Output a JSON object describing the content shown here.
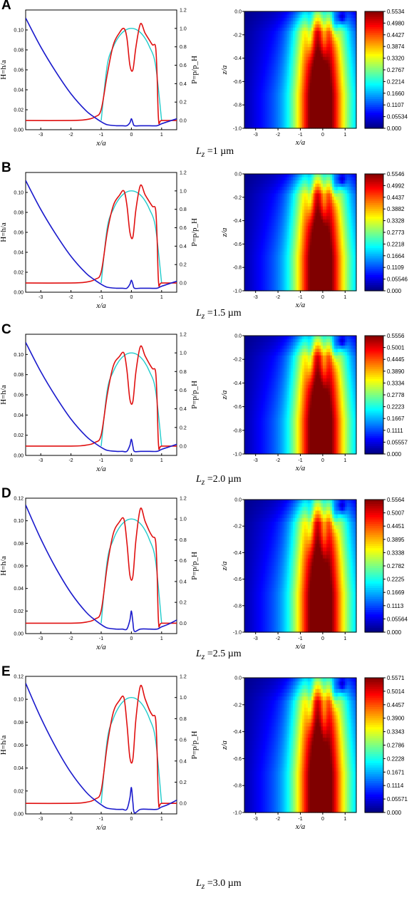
{
  "panels": [
    {
      "letter": "A",
      "caption_prefix": "L",
      "caption_sub": "z",
      "caption_value": " =1 µm"
    },
    {
      "letter": "B",
      "caption_prefix": "L",
      "caption_sub": "z",
      "caption_value": " =1.5 µm"
    },
    {
      "letter": "C",
      "caption_prefix": "L",
      "caption_sub": "z",
      "caption_value": " =2.0 µm"
    },
    {
      "letter": "D",
      "caption_prefix": "L",
      "caption_sub": "z",
      "caption_value": " =2.5 µm"
    },
    {
      "letter": "E",
      "caption_prefix": "L",
      "caption_sub": "z",
      "caption_value": " =3.0 µm"
    }
  ],
  "colors": {
    "film_thickness": "#1a1acc",
    "pressure": "#e01010",
    "hertz": "#22cccc"
  },
  "chart_data": [
    {
      "type": "line",
      "panel": "A",
      "xlabel": "x/a",
      "ylabel_left": "H=h/a",
      "ylabel_right": "P=p/p_H",
      "xlim": [
        -3.5,
        1.5
      ],
      "ylim_left": [
        0.0,
        0.12
      ],
      "ylim_right": [
        -0.1,
        1.2
      ],
      "x_ticks": [
        "-3",
        "-2",
        "-1",
        "0",
        "1"
      ],
      "y_left_ticks": [
        "0.00",
        "0.02",
        "0.04",
        "0.06",
        "0.08",
        "0.10"
      ],
      "y_right_ticks": [
        "0.0",
        "0.2",
        "0.4",
        "0.6",
        "0.8",
        "1.0",
        "1.2"
      ],
      "series": [
        {
          "x": [
            -3.5,
            -3.0,
            -2.5,
            -2.0,
            -1.5,
            -1.2,
            -1.0,
            -0.8,
            -0.5,
            -0.3,
            -0.15,
            -0.05,
            0.0,
            0.05,
            0.1,
            0.3,
            0.6,
            0.85,
            1.0,
            1.2,
            1.5
          ],
          "values": [
            0.112,
            0.083,
            0.058,
            0.036,
            0.019,
            0.012,
            0.008,
            0.005,
            0.004,
            0.004,
            0.004,
            0.007,
            0.011,
            0.007,
            0.004,
            0.004,
            0.004,
            0.004,
            0.006,
            0.008,
            0.011
          ]
        },
        {
          "x": [
            -3.5,
            -2.0,
            -1.5,
            -1.2,
            -1.0,
            -0.8,
            -0.6,
            -0.4,
            -0.25,
            -0.15,
            -0.05,
            0.05,
            0.15,
            0.3,
            0.45,
            0.6,
            0.7,
            0.8,
            0.85,
            0.9,
            1.0,
            1.5
          ],
          "values": [
            0.0,
            0.0,
            0.01,
            0.04,
            0.12,
            0.5,
            0.82,
            0.95,
            1.0,
            0.9,
            0.6,
            0.55,
            0.8,
            1.05,
            0.95,
            0.87,
            0.82,
            0.8,
            0.5,
            0.0,
            0.0,
            0.0
          ]
        },
        {
          "x": [
            -1.0,
            -0.8,
            -0.6,
            -0.4,
            -0.2,
            0.0,
            0.2,
            0.4,
            0.6,
            0.8,
            1.0
          ],
          "values": [
            0.0,
            0.6,
            0.8,
            0.917,
            0.98,
            1.0,
            0.98,
            0.917,
            0.8,
            0.6,
            0.0
          ]
        }
      ]
    },
    {
      "type": "heatmap",
      "panel": "A",
      "xlabel": "x/a",
      "ylabel": "z/a",
      "xlim": [
        -3.5,
        1.5
      ],
      "ylim": [
        -1.0,
        0.0
      ],
      "x_ticks": [
        "-3",
        "-2",
        "-1",
        "0",
        "1"
      ],
      "y_ticks": [
        "0.0",
        "-0.2",
        "-0.4",
        "-0.6",
        "-0.8",
        "-1.0"
      ],
      "colorbar_ticks": [
        "0.5534",
        "0.4980",
        "0.4427",
        "0.3874",
        "0.3320",
        "0.2767",
        "0.2214",
        "0.1660",
        "0.1107",
        "0.05534",
        "0.000"
      ],
      "vmax": 0.5534
    },
    {
      "type": "line",
      "panel": "B",
      "xlabel": "x/a",
      "ylabel_left": "H=h/a",
      "ylabel_right": "P=p/p_H",
      "xlim": [
        -3.5,
        1.5
      ],
      "ylim_left": [
        0.0,
        0.12
      ],
      "ylim_right": [
        -0.1,
        1.2
      ],
      "x_ticks": [
        "-3",
        "-2",
        "-1",
        "0",
        "1"
      ],
      "y_left_ticks": [
        "0.00",
        "0.02",
        "0.04",
        "0.06",
        "0.08",
        "0.10"
      ],
      "y_right_ticks": [
        "0.0",
        "0.2",
        "0.4",
        "0.6",
        "0.8",
        "1.0",
        "1.2"
      ],
      "series": [
        {
          "x": [
            -3.5,
            -3.0,
            -2.5,
            -2.0,
            -1.5,
            -1.2,
            -1.0,
            -0.8,
            -0.5,
            -0.3,
            -0.15,
            -0.05,
            0.0,
            0.05,
            0.1,
            0.3,
            0.6,
            0.85,
            1.0,
            1.2,
            1.5
          ],
          "values": [
            0.112,
            0.083,
            0.058,
            0.036,
            0.019,
            0.012,
            0.008,
            0.005,
            0.004,
            0.004,
            0.004,
            0.008,
            0.012,
            0.008,
            0.004,
            0.004,
            0.004,
            0.004,
            0.006,
            0.008,
            0.011
          ]
        },
        {
          "x": [
            -3.5,
            -2.0,
            -1.5,
            -1.2,
            -1.0,
            -0.8,
            -0.6,
            -0.4,
            -0.25,
            -0.15,
            -0.05,
            0.05,
            0.15,
            0.3,
            0.45,
            0.6,
            0.7,
            0.8,
            0.85,
            0.9,
            1.0,
            1.5
          ],
          "values": [
            0.0,
            0.0,
            0.01,
            0.04,
            0.12,
            0.55,
            0.84,
            0.95,
            1.0,
            0.85,
            0.55,
            0.5,
            0.8,
            1.06,
            0.96,
            0.88,
            0.83,
            0.8,
            0.5,
            0.0,
            0.0,
            0.0
          ]
        },
        {
          "x": [
            -1.0,
            -0.8,
            -0.6,
            -0.4,
            -0.2,
            0.0,
            0.2,
            0.4,
            0.6,
            0.8,
            1.0
          ],
          "values": [
            0.0,
            0.6,
            0.8,
            0.917,
            0.98,
            1.0,
            0.98,
            0.917,
            0.8,
            0.6,
            0.0
          ]
        }
      ]
    },
    {
      "type": "heatmap",
      "panel": "B",
      "xlabel": "x/a",
      "ylabel": "z/a",
      "xlim": [
        -3.5,
        1.5
      ],
      "ylim": [
        -1.0,
        0.0
      ],
      "x_ticks": [
        "-3",
        "-2",
        "-1",
        "0",
        "1"
      ],
      "y_ticks": [
        "0.0",
        "-0.2",
        "-0.4",
        "-0.6",
        "-0.8",
        "-1.0"
      ],
      "colorbar_ticks": [
        "0.5546",
        "0.4992",
        "0.4437",
        "0.3882",
        "0.3328",
        "0.2773",
        "0.2218",
        "0.1664",
        "0.1109",
        "0.05546",
        "0.000"
      ],
      "vmax": 0.5546
    },
    {
      "type": "line",
      "panel": "C",
      "xlabel": "x/a",
      "ylabel_left": "H=h/a",
      "ylabel_right": "P=p/p_H",
      "xlim": [
        -3.5,
        1.5
      ],
      "ylim_left": [
        0.0,
        0.12
      ],
      "ylim_right": [
        -0.1,
        1.2
      ],
      "x_ticks": [
        "-3",
        "-2",
        "-1",
        "0",
        "1"
      ],
      "y_left_ticks": [
        "0.00",
        "0.02",
        "0.04",
        "0.06",
        "0.08",
        "0.10"
      ],
      "y_right_ticks": [
        "0.0",
        "0.2",
        "0.4",
        "0.6",
        "0.8",
        "1.0",
        "1.2"
      ],
      "series": [
        {
          "x": [
            -3.5,
            -3.0,
            -2.5,
            -2.0,
            -1.5,
            -1.2,
            -1.0,
            -0.8,
            -0.5,
            -0.3,
            -0.15,
            -0.05,
            0.0,
            0.05,
            0.1,
            0.3,
            0.6,
            0.85,
            1.0,
            1.2,
            1.5
          ],
          "values": [
            0.112,
            0.083,
            0.058,
            0.036,
            0.019,
            0.012,
            0.008,
            0.005,
            0.004,
            0.004,
            0.004,
            0.01,
            0.016,
            0.009,
            0.004,
            0.004,
            0.004,
            0.004,
            0.006,
            0.008,
            0.011
          ]
        },
        {
          "x": [
            -3.5,
            -2.0,
            -1.5,
            -1.2,
            -1.0,
            -0.8,
            -0.6,
            -0.4,
            -0.25,
            -0.15,
            -0.05,
            0.05,
            0.15,
            0.3,
            0.45,
            0.6,
            0.7,
            0.8,
            0.85,
            0.9,
            1.0,
            1.5
          ],
          "values": [
            0.0,
            0.0,
            0.01,
            0.04,
            0.12,
            0.55,
            0.86,
            0.96,
            1.0,
            0.82,
            0.5,
            0.48,
            0.8,
            1.07,
            0.97,
            0.88,
            0.83,
            0.8,
            0.5,
            0.0,
            0.0,
            0.0
          ]
        },
        {
          "x": [
            -1.0,
            -0.8,
            -0.6,
            -0.4,
            -0.2,
            0.0,
            0.2,
            0.4,
            0.6,
            0.8,
            1.0
          ],
          "values": [
            0.0,
            0.6,
            0.8,
            0.917,
            0.98,
            1.0,
            0.98,
            0.917,
            0.8,
            0.6,
            0.0
          ]
        }
      ]
    },
    {
      "type": "heatmap",
      "panel": "C",
      "xlabel": "x/a",
      "ylabel": "z/a",
      "xlim": [
        -3.5,
        1.5
      ],
      "ylim": [
        -1.0,
        0.0
      ],
      "x_ticks": [
        "-3",
        "-2",
        "-1",
        "0",
        "1"
      ],
      "y_ticks": [
        "0.0",
        "-0.2",
        "-0.4",
        "-0.6",
        "-0.8",
        "-1.0"
      ],
      "colorbar_ticks": [
        "0.5556",
        "0.5001",
        "0.4445",
        "0.3890",
        "0.3334",
        "0.2778",
        "0.2223",
        "0.1667",
        "0.1111",
        "0.05557",
        "0.000"
      ],
      "vmax": 0.5556
    },
    {
      "type": "line",
      "panel": "D",
      "xlabel": "x/a",
      "ylabel_left": "H=h/a",
      "ylabel_right": "P=p/p_H",
      "xlim": [
        -3.5,
        1.5
      ],
      "ylim_left": [
        0.0,
        0.12
      ],
      "ylim_right": [
        -0.1,
        1.2
      ],
      "x_ticks": [
        "-3",
        "-2",
        "-1",
        "0",
        "1"
      ],
      "y_left_ticks": [
        "0.00",
        "0.02",
        "0.04",
        "0.06",
        "0.08",
        "0.10",
        "0.12"
      ],
      "y_right_ticks": [
        "0.0",
        "0.2",
        "0.4",
        "0.6",
        "0.8",
        "1.0",
        "1.2"
      ],
      "series": [
        {
          "x": [
            -3.5,
            -3.0,
            -2.5,
            -2.0,
            -1.5,
            -1.2,
            -1.0,
            -0.8,
            -0.5,
            -0.3,
            -0.15,
            -0.05,
            0.0,
            0.05,
            0.1,
            0.3,
            0.6,
            0.85,
            1.0,
            1.2,
            1.5
          ],
          "values": [
            0.114,
            0.084,
            0.058,
            0.036,
            0.019,
            0.012,
            0.008,
            0.005,
            0.004,
            0.004,
            0.004,
            0.012,
            0.02,
            0.01,
            0.002,
            0.004,
            0.004,
            0.004,
            0.006,
            0.008,
            0.012
          ]
        },
        {
          "x": [
            -3.5,
            -2.0,
            -1.5,
            -1.2,
            -1.0,
            -0.8,
            -0.6,
            -0.4,
            -0.25,
            -0.15,
            -0.05,
            0.05,
            0.15,
            0.3,
            0.45,
            0.6,
            0.7,
            0.8,
            0.85,
            0.9,
            1.0,
            1.5
          ],
          "values": [
            0.0,
            0.0,
            0.01,
            0.04,
            0.12,
            0.55,
            0.86,
            0.97,
            1.0,
            0.78,
            0.46,
            0.45,
            0.8,
            1.1,
            0.98,
            0.88,
            0.83,
            0.79,
            0.5,
            0.0,
            0.0,
            0.0
          ]
        },
        {
          "x": [
            -1.0,
            -0.8,
            -0.6,
            -0.4,
            -0.2,
            0.0,
            0.2,
            0.4,
            0.6,
            0.8,
            1.0
          ],
          "values": [
            0.0,
            0.6,
            0.8,
            0.917,
            0.98,
            1.0,
            0.98,
            0.917,
            0.8,
            0.6,
            0.0
          ]
        }
      ]
    },
    {
      "type": "heatmap",
      "panel": "D",
      "xlabel": "x/a",
      "ylabel": "z/a",
      "xlim": [
        -3.5,
        1.5
      ],
      "ylim": [
        -1.0,
        0.0
      ],
      "x_ticks": [
        "-3",
        "-2",
        "-1",
        "0",
        "1"
      ],
      "y_ticks": [
        "0.0",
        "-0.2",
        "-0.4",
        "-0.6",
        "-0.8",
        "-1.0"
      ],
      "colorbar_ticks": [
        "0.5564",
        "0.5007",
        "0.4451",
        "0.3895",
        "0.3338",
        "0.2782",
        "0.2225",
        "0.1669",
        "0.1113",
        "0.05564",
        "0.000"
      ],
      "vmax": 0.5564
    },
    {
      "type": "line",
      "panel": "E",
      "xlabel": "x/a",
      "ylabel_left": "H=h/a",
      "ylabel_right": "P=p/p_H",
      "xlim": [
        -3.5,
        1.5
      ],
      "ylim_left": [
        0.0,
        0.12
      ],
      "ylim_right": [
        -0.1,
        1.2
      ],
      "x_ticks": [
        "-3",
        "-2",
        "-1",
        "0",
        "1"
      ],
      "y_left_ticks": [
        "0.00",
        "0.02",
        "0.04",
        "0.06",
        "0.08",
        "0.10",
        "0.12"
      ],
      "y_right_ticks": [
        "0.0",
        "0.2",
        "0.4",
        "0.6",
        "0.8",
        "1.0",
        "1.2"
      ],
      "series": [
        {
          "x": [
            -3.5,
            -3.0,
            -2.5,
            -2.0,
            -1.5,
            -1.2,
            -1.0,
            -0.8,
            -0.5,
            -0.3,
            -0.15,
            -0.05,
            0.0,
            0.05,
            0.1,
            0.3,
            0.6,
            0.85,
            1.0,
            1.2,
            1.5
          ],
          "values": [
            0.114,
            0.084,
            0.058,
            0.036,
            0.019,
            0.012,
            0.008,
            0.005,
            0.004,
            0.004,
            0.004,
            0.014,
            0.023,
            0.01,
            0.001,
            0.004,
            0.004,
            0.004,
            0.006,
            0.008,
            0.012
          ]
        },
        {
          "x": [
            -3.5,
            -2.0,
            -1.5,
            -1.2,
            -1.0,
            -0.8,
            -0.6,
            -0.4,
            -0.25,
            -0.15,
            -0.05,
            0.05,
            0.15,
            0.3,
            0.45,
            0.6,
            0.7,
            0.8,
            0.85,
            0.9,
            1.0,
            1.5
          ],
          "values": [
            0.0,
            0.0,
            0.01,
            0.04,
            0.12,
            0.55,
            0.86,
            0.97,
            1.0,
            0.76,
            0.43,
            0.42,
            0.8,
            1.11,
            0.99,
            0.88,
            0.83,
            0.8,
            0.5,
            0.0,
            0.0,
            0.0
          ]
        },
        {
          "x": [
            -1.0,
            -0.8,
            -0.6,
            -0.4,
            -0.2,
            0.0,
            0.2,
            0.4,
            0.6,
            0.8,
            1.0
          ],
          "values": [
            0.0,
            0.6,
            0.8,
            0.917,
            0.98,
            1.0,
            0.98,
            0.917,
            0.8,
            0.6,
            0.0
          ]
        }
      ]
    },
    {
      "type": "heatmap",
      "panel": "E",
      "xlabel": "x/a",
      "ylabel": "z/a",
      "xlim": [
        -3.5,
        1.5
      ],
      "ylim": [
        -1.0,
        0.0
      ],
      "x_ticks": [
        "-3",
        "-2",
        "-1",
        "0",
        "1"
      ],
      "y_ticks": [
        "0.0",
        "-0.2",
        "-0.4",
        "-0.6",
        "-0.8",
        "-1.0"
      ],
      "colorbar_ticks": [
        "0.5571",
        "0.5014",
        "0.4457",
        "0.3900",
        "0.3343",
        "0.2786",
        "0.2228",
        "0.1671",
        "0.1114",
        "0.05571",
        "0.000"
      ],
      "vmax": 0.5571
    }
  ]
}
